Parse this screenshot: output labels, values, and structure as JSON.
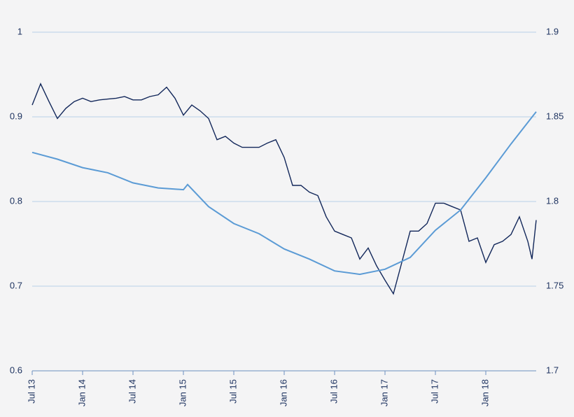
{
  "chart_data": {
    "type": "line",
    "xlim": [
      0,
      60
    ],
    "xticks": [
      {
        "value": 0,
        "label": "Jul 13"
      },
      {
        "value": 6,
        "label": "Jan 14"
      },
      {
        "value": 12,
        "label": "Jul 14"
      },
      {
        "value": 18,
        "label": "Jan 15"
      },
      {
        "value": 24,
        "label": "Jul 15"
      },
      {
        "value": 30,
        "label": "Jan 16"
      },
      {
        "value": 36,
        "label": "Jul 16"
      },
      {
        "value": 42,
        "label": "Jan 17"
      },
      {
        "value": 48,
        "label": "Jul 17"
      },
      {
        "value": 54,
        "label": "Jan 18"
      }
    ],
    "ylim": [
      0.6,
      1
    ],
    "yticks": [
      0.6,
      0.7,
      0.8,
      0.9,
      1
    ],
    "y2lim": [
      1.7,
      1.9
    ],
    "y2ticks": [
      1.7,
      1.75,
      1.8,
      1.85,
      1.9
    ],
    "grid": true,
    "series": [
      {
        "color": "#12275a",
        "x": [
          0,
          1,
          2,
          3,
          4,
          5,
          6,
          7,
          8,
          9,
          10,
          11,
          12,
          13,
          14,
          15,
          16,
          17,
          18,
          19,
          20,
          21,
          22,
          23,
          24,
          25,
          26,
          27,
          28,
          29,
          30,
          31,
          32,
          33,
          34,
          35,
          36,
          37,
          38,
          39,
          40,
          41,
          42,
          43,
          44,
          45,
          46,
          47,
          48,
          49,
          50,
          51,
          52,
          53,
          54,
          55,
          56,
          57,
          58,
          59,
          59.5,
          60
        ],
        "values": [
          0.914,
          0.939,
          0.918,
          0.898,
          0.91,
          0.918,
          0.922,
          0.918,
          0.92,
          0.921,
          0.922,
          0.924,
          0.92,
          0.92,
          0.924,
          0.926,
          0.935,
          0.922,
          0.902,
          0.914,
          0.907,
          0.898,
          0.873,
          0.877,
          0.869,
          0.864,
          0.864,
          0.864,
          0.869,
          0.873,
          0.852,
          0.819,
          0.819,
          0.811,
          0.807,
          0.782,
          0.765,
          0.761,
          0.757,
          0.732,
          0.745,
          0.724,
          0.707,
          0.691,
          0.728,
          0.765,
          0.765,
          0.774,
          0.798,
          0.798,
          0.794,
          0.79,
          0.753,
          0.757,
          0.728,
          0.749,
          0.753,
          0.761,
          0.782,
          0.753,
          0.732,
          0.778
        ]
      },
      {
        "color": "#5b9bd5",
        "axis": "y2",
        "x": [
          0,
          3,
          6,
          9,
          12,
          15,
          18,
          18.5,
          21,
          24,
          27,
          30,
          33,
          36,
          39,
          42,
          45,
          48,
          51,
          54,
          57,
          60
        ],
        "values": [
          1.829,
          1.825,
          1.82,
          1.817,
          1.811,
          1.808,
          1.807,
          1.81,
          1.797,
          1.787,
          1.781,
          1.772,
          1.766,
          1.759,
          1.757,
          1.76,
          1.767,
          1.783,
          1.795,
          1.814,
          1.834,
          1.853
        ]
      }
    ]
  }
}
